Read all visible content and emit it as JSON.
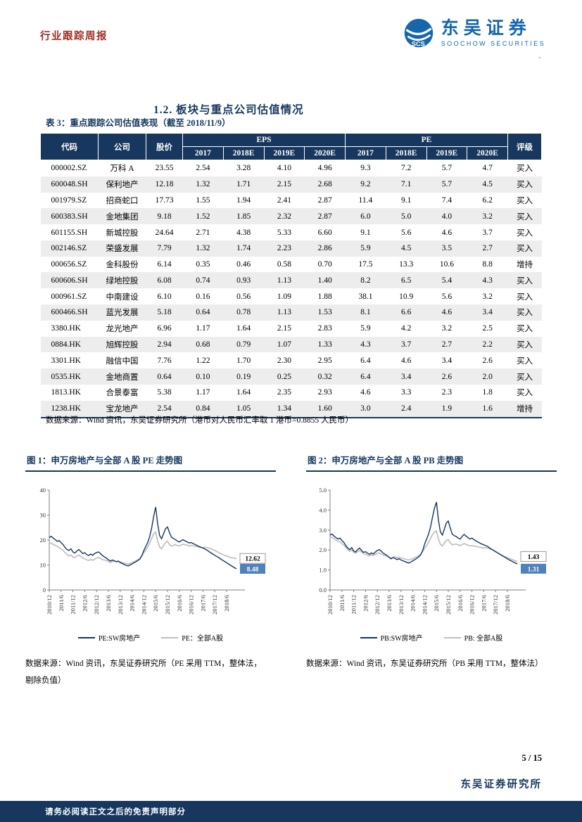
{
  "theme": {
    "navy": "#17375E",
    "brand_blue": "#1566AC",
    "header_red": "#9E2B25",
    "label_box_blue": "#4F81BD",
    "series_gray": "#BFBFBF",
    "alt_row": "#EDEDED"
  },
  "page": {
    "header": {
      "report_type": "行业跟踪周报",
      "logo": {
        "brand": "东吴证券",
        "brand_en": "SOOCHOW SECURITIES",
        "icon_text": "SCS"
      },
      "dash": "-"
    },
    "section_title": "1.2. 板块与重点公司估值情况",
    "table": {
      "title": "表 3：重点跟踪公司估值表现（截至 2018/11/9）",
      "col_headers": {
        "code": "代码",
        "company": "公司",
        "price": "股价",
        "eps": "EPS",
        "pe": "PE",
        "rating": "评级",
        "years": [
          "2017",
          "2018E",
          "2019E",
          "2020E"
        ]
      },
      "rows": [
        [
          "000002.SZ",
          "万科 A",
          "23.55",
          "2.54",
          "3.28",
          "4.10",
          "4.96",
          "9.3",
          "7.2",
          "5.7",
          "4.7",
          "买入"
        ],
        [
          "600048.SH",
          "保利地产",
          "12.18",
          "1.32",
          "1.71",
          "2.15",
          "2.68",
          "9.2",
          "7.1",
          "5.7",
          "4.5",
          "买入"
        ],
        [
          "001979.SZ",
          "招商蛇口",
          "17.73",
          "1.55",
          "1.94",
          "2.41",
          "2.87",
          "11.4",
          "9.1",
          "7.4",
          "6.2",
          "买入"
        ],
        [
          "600383.SH",
          "金地集团",
          "9.18",
          "1.52",
          "1.85",
          "2.32",
          "2.87",
          "6.0",
          "5.0",
          "4.0",
          "3.2",
          "买入"
        ],
        [
          "601155.SH",
          "新城控股",
          "24.64",
          "2.71",
          "4.38",
          "5.33",
          "6.60",
          "9.1",
          "5.6",
          "4.6",
          "3.7",
          "买入"
        ],
        [
          "002146.SZ",
          "荣盛发展",
          "7.79",
          "1.32",
          "1.74",
          "2.23",
          "2.86",
          "5.9",
          "4.5",
          "3.5",
          "2.7",
          "买入"
        ],
        [
          "000656.SZ",
          "金科股份",
          "6.14",
          "0.35",
          "0.46",
          "0.58",
          "0.70",
          "17.5",
          "13.3",
          "10.6",
          "8.8",
          "增持"
        ],
        [
          "600606.SH",
          "绿地控股",
          "6.08",
          "0.74",
          "0.93",
          "1.13",
          "1.40",
          "8.2",
          "6.5",
          "5.4",
          "4.3",
          "买入"
        ],
        [
          "000961.SZ",
          "中南建设",
          "6.10",
          "0.16",
          "0.56",
          "1.09",
          "1.88",
          "38.1",
          "10.9",
          "5.6",
          "3.2",
          "买入"
        ],
        [
          "600466.SH",
          "蓝光发展",
          "5.18",
          "0.64",
          "0.78",
          "1.13",
          "1.53",
          "8.1",
          "6.6",
          "4.6",
          "3.4",
          "买入"
        ],
        [
          "3380.HK",
          "龙光地产",
          "6.96",
          "1.17",
          "1.64",
          "2.15",
          "2.83",
          "5.9",
          "4.2",
          "3.2",
          "2.5",
          "买入"
        ],
        [
          "0884.HK",
          "旭辉控股",
          "2.94",
          "0.68",
          "0.79",
          "1.07",
          "1.33",
          "4.3",
          "3.7",
          "2.7",
          "2.2",
          "买入"
        ],
        [
          "3301.HK",
          "融信中国",
          "7.76",
          "1.22",
          "1.70",
          "2.30",
          "2.95",
          "6.4",
          "4.6",
          "3.4",
          "2.6",
          "买入"
        ],
        [
          "0535.HK",
          "金地商置",
          "0.64",
          "0.10",
          "0.19",
          "0.25",
          "0.32",
          "6.4",
          "3.4",
          "2.6",
          "2.0",
          "买入"
        ],
        [
          "1813.HK",
          "合景泰富",
          "5.38",
          "1.17",
          "1.64",
          "2.35",
          "2.93",
          "4.6",
          "3.3",
          "2.3",
          "1.8",
          "买入"
        ],
        [
          "1238.HK",
          "宝龙地产",
          "2.54",
          "0.84",
          "1.05",
          "1.34",
          "1.60",
          "3.0",
          "2.4",
          "1.9",
          "1.6",
          "增持"
        ]
      ],
      "source": "数据来源：Wind 资讯，东吴证券研究所（港币对人民币汇率取 1 港币=0.8855 人民币）"
    },
    "footer": {
      "page_num": "5 / 15",
      "institute": "东吴证券研究所",
      "disclaimer": "请务必阅读正文之后的免责声明部分"
    }
  },
  "chart_data": [
    {
      "type": "line",
      "title": "图 1：申万房地产与全部 A 股 PE 走势图",
      "source_note": "数据来源：Wind 资讯，东吴证券研究所（PE 采用 TTM，整体法，剔除负值）",
      "ylim": [
        0,
        40
      ],
      "yticks": [
        0,
        10,
        20,
        30,
        40
      ],
      "ytick_labels": [
        "0",
        "10",
        "20",
        "30",
        "40"
      ],
      "x_tick_step": 6,
      "x_tick_labels": [
        "2010/12",
        "2011/6",
        "2011/12",
        "2012/6",
        "2012/12",
        "2013/6",
        "2013/12",
        "2014/6",
        "2014/12",
        "2015/6",
        "2015/12",
        "2016/6",
        "2016/12",
        "2017/6",
        "2017/12",
        "2018/6"
      ],
      "legend_position": "bottom",
      "grid": false,
      "series": [
        {
          "name": "PE:SW房地产",
          "color": "#17375E",
          "end_label": "8.48",
          "end_label_style": "filled",
          "end_label_dy": 0,
          "values": [
            21.0,
            21.5,
            20.8,
            20.2,
            19.5,
            19.8,
            18.9,
            18.2,
            17.0,
            16.2,
            15.8,
            16.5,
            15.2,
            14.8,
            15.6,
            16.2,
            15.4,
            14.6,
            14.9,
            14.2,
            13.8,
            14.4,
            13.9,
            14.6,
            15.0,
            15.2,
            14.6,
            13.8,
            13.2,
            12.8,
            12.1,
            11.6,
            12.0,
            11.7,
            11.3,
            11.6,
            11.0,
            10.6,
            10.2,
            9.9,
            9.6,
            10.0,
            10.4,
            10.9,
            11.3,
            11.8,
            12.4,
            13.8,
            15.8,
            17.5,
            19.0,
            21.5,
            25.0,
            29.5,
            33.2,
            26.5,
            21.8,
            20.5,
            22.5,
            24.5,
            25.2,
            23.0,
            21.2,
            20.6,
            20.2,
            19.6,
            19.2,
            19.8,
            20.1,
            19.6,
            19.2,
            18.8,
            19.0,
            18.6,
            18.2,
            17.8,
            17.4,
            17.1,
            16.8,
            16.4,
            16.0,
            15.4,
            14.9,
            14.4,
            13.9,
            13.4,
            13.0,
            12.4,
            11.9,
            11.4,
            10.9,
            10.4,
            9.9,
            9.4,
            8.9,
            8.48
          ]
        },
        {
          "name": "PE：全部A股",
          "color": "#BFBFBF",
          "end_label": "12.62",
          "end_label_style": "outline",
          "end_label_dy": 0,
          "values": [
            18.5,
            18.8,
            18.2,
            17.9,
            17.5,
            17.0,
            16.4,
            15.9,
            15.0,
            14.2,
            13.6,
            14.0,
            13.2,
            13.0,
            13.6,
            14.0,
            13.4,
            12.8,
            12.5,
            12.1,
            11.8,
            12.2,
            11.9,
            12.3,
            12.8,
            13.0,
            12.6,
            12.2,
            12.0,
            11.8,
            11.4,
            11.0,
            11.4,
            11.6,
            11.3,
            11.5,
            11.2,
            11.0,
            10.8,
            10.6,
            10.4,
            10.6,
            10.9,
            11.3,
            11.7,
            12.1,
            12.6,
            13.6,
            15.0,
            16.0,
            17.2,
            18.8,
            20.8,
            22.5,
            23.2,
            19.5,
            17.2,
            16.5,
            17.8,
            19.0,
            19.5,
            18.2,
            17.6,
            17.9,
            18.1,
            17.8,
            17.6,
            18.0,
            18.3,
            18.1,
            17.9,
            17.7,
            17.9,
            17.7,
            17.5,
            17.4,
            17.2,
            17.0,
            16.9,
            17.1,
            17.0,
            16.8,
            16.5,
            16.2,
            15.8,
            15.4,
            15.0,
            14.6,
            14.2,
            13.9,
            13.6,
            13.3,
            13.0,
            12.9,
            12.7,
            12.62
          ]
        }
      ]
    },
    {
      "type": "line",
      "title": "图 2：申万房地产与全部 A 股 PB 走势图",
      "source_note": "数据来源：Wind 资讯，东吴证券研究所（PB 采用 TTM，整体法）",
      "ylim": [
        0,
        5
      ],
      "yticks": [
        0,
        1,
        2,
        3,
        4,
        5
      ],
      "ytick_labels": [
        "0.0",
        "1.0",
        "2.0",
        "3.0",
        "4.0",
        "5.0"
      ],
      "x_tick_step": 6,
      "x_tick_labels": [
        "2010/12",
        "2011/6",
        "2011/12",
        "2012/6",
        "2012/12",
        "2013/6",
        "2013/12",
        "2014/6",
        "2014/12",
        "2015/6",
        "2015/12",
        "2016/6",
        "2016/12",
        "2017/6",
        "2017/12",
        "2018/6"
      ],
      "legend_position": "bottom",
      "grid": false,
      "series": [
        {
          "name": "PB:SW房地产",
          "color": "#17375E",
          "end_label": "1.31",
          "end_label_style": "filled",
          "end_label_dy": 7,
          "values": [
            2.75,
            2.8,
            2.7,
            2.62,
            2.55,
            2.6,
            2.48,
            2.38,
            2.22,
            2.1,
            2.02,
            2.12,
            1.95,
            1.9,
            2.02,
            2.1,
            1.98,
            1.88,
            1.92,
            1.84,
            1.78,
            1.86,
            1.8,
            1.9,
            1.98,
            2.02,
            1.94,
            1.84,
            1.78,
            1.72,
            1.62,
            1.56,
            1.62,
            1.58,
            1.52,
            1.56,
            1.5,
            1.46,
            1.42,
            1.38,
            1.35,
            1.4,
            1.46,
            1.52,
            1.58,
            1.66,
            1.76,
            1.98,
            2.3,
            2.55,
            2.8,
            3.15,
            3.65,
            4.1,
            4.4,
            3.5,
            2.9,
            2.75,
            3.05,
            3.35,
            3.45,
            3.1,
            2.8,
            2.72,
            2.68,
            2.6,
            2.55,
            2.68,
            2.78,
            2.7,
            2.62,
            2.55,
            2.6,
            2.52,
            2.46,
            2.4,
            2.35,
            2.3,
            2.26,
            2.22,
            2.18,
            2.1,
            2.04,
            1.98,
            1.92,
            1.86,
            1.8,
            1.74,
            1.68,
            1.62,
            1.56,
            1.5,
            1.45,
            1.4,
            1.35,
            1.31
          ]
        },
        {
          "name": "PB: 全部A股",
          "color": "#BFBFBF",
          "end_label": "1.43",
          "end_label_style": "outline",
          "end_label_dy": -7,
          "values": [
            2.6,
            2.64,
            2.56,
            2.5,
            2.44,
            2.4,
            2.32,
            2.24,
            2.12,
            2.02,
            1.94,
            2.0,
            1.88,
            1.84,
            1.92,
            1.98,
            1.9,
            1.82,
            1.8,
            1.74,
            1.7,
            1.76,
            1.72,
            1.78,
            1.84,
            1.86,
            1.8,
            1.74,
            1.72,
            1.7,
            1.64,
            1.6,
            1.64,
            1.66,
            1.62,
            1.64,
            1.6,
            1.58,
            1.55,
            1.52,
            1.5,
            1.53,
            1.57,
            1.62,
            1.67,
            1.72,
            1.79,
            1.92,
            2.1,
            2.22,
            2.38,
            2.58,
            2.78,
            2.9,
            2.95,
            2.55,
            2.28,
            2.2,
            2.35,
            2.48,
            2.52,
            2.36,
            2.26,
            2.28,
            2.3,
            2.26,
            2.22,
            2.28,
            2.32,
            2.28,
            2.24,
            2.2,
            2.22,
            2.2,
            2.18,
            2.16,
            2.14,
            2.12,
            2.1,
            2.12,
            2.1,
            2.06,
            2.02,
            1.98,
            1.92,
            1.86,
            1.8,
            1.74,
            1.7,
            1.66,
            1.62,
            1.58,
            1.54,
            1.5,
            1.46,
            1.43
          ]
        }
      ]
    }
  ]
}
